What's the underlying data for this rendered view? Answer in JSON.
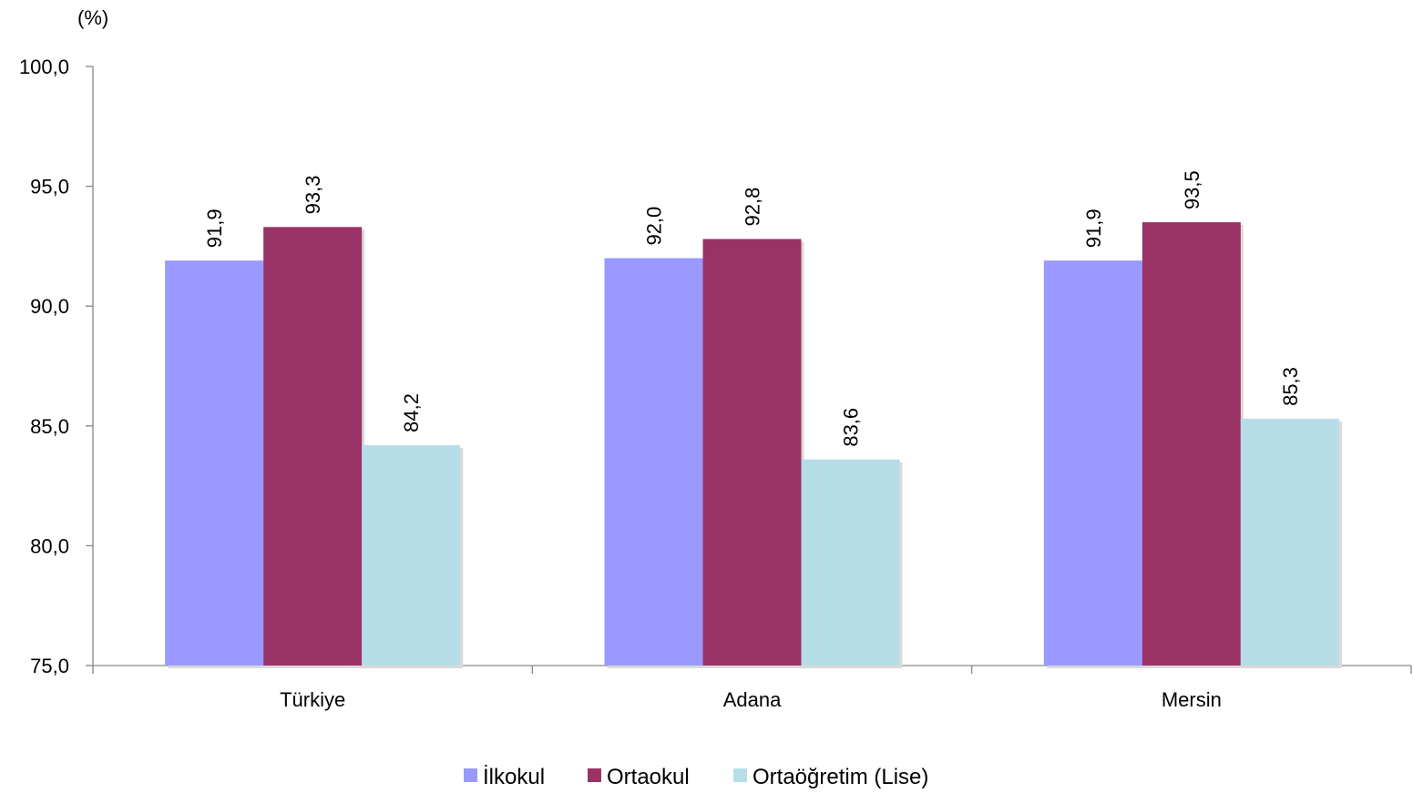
{
  "chart_data": {
    "type": "bar",
    "unit_label": "(%)",
    "categories": [
      "Türkiye",
      "Adana",
      "Mersin"
    ],
    "series": [
      {
        "name": "İlkokul",
        "values": [
          91.9,
          92.0,
          91.9
        ],
        "labels": [
          "91,9",
          "92,0",
          "91,9"
        ],
        "color": "#9999FF"
      },
      {
        "name": "Ortaokul",
        "values": [
          93.3,
          92.8,
          93.5
        ],
        "labels": [
          "93,3",
          "92,8",
          "93,5"
        ],
        "color": "#993366"
      },
      {
        "name": "Ortaöğretim (Lise)",
        "values": [
          84.2,
          83.6,
          85.3
        ],
        "labels": [
          "84,2",
          "83,6",
          "85,3"
        ],
        "color": "#B7DEE8"
      }
    ],
    "ylim": [
      75,
      100
    ],
    "yticks": [
      75,
      80,
      85,
      90,
      95,
      100
    ],
    "ytick_labels": [
      "75,0",
      "80,0",
      "85,0",
      "90,0",
      "95,0",
      "100,0"
    ],
    "grid": false,
    "legend_position": "bottom"
  }
}
